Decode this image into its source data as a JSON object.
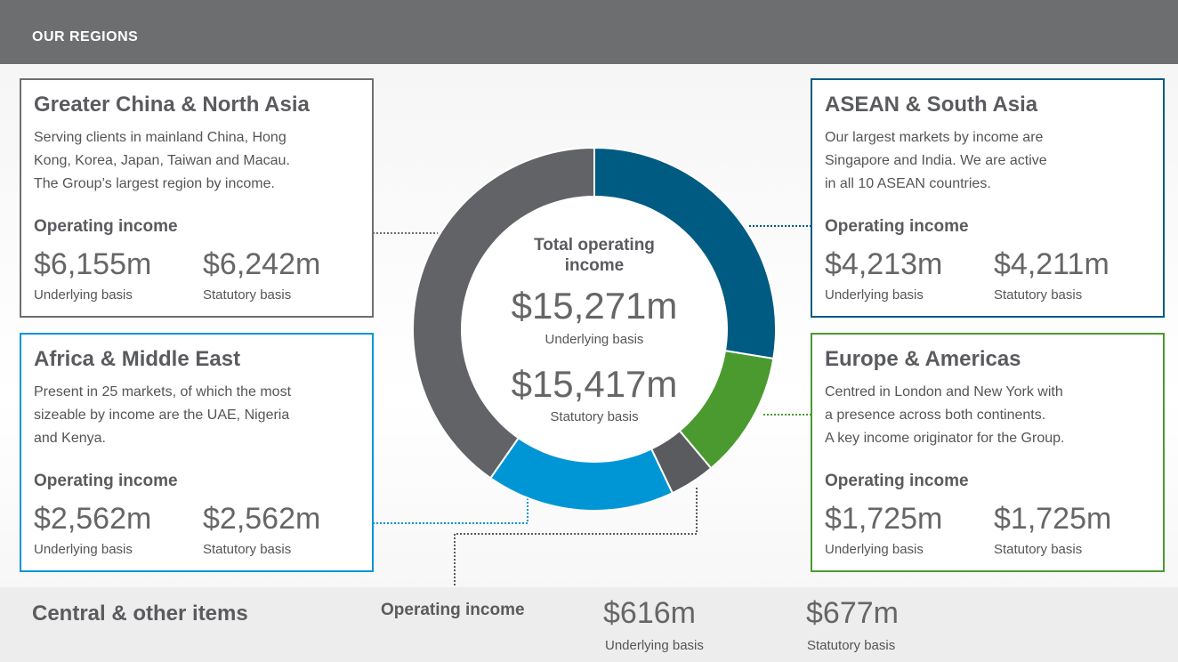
{
  "header": {
    "title": "OUR REGIONS"
  },
  "total": {
    "title": "Total operating income",
    "underlying": "$15,271m",
    "underlying_caption": "Underlying basis",
    "statutory": "$15,417m",
    "statutory_caption": "Statutory basis"
  },
  "regions": [
    {
      "name": "Greater China & North Asia",
      "color": "#6d6e71",
      "donut_color": "#626366",
      "description": [
        "Serving clients in mainland China, Hong",
        "Kong, Korea, Japan, Taiwan and Macau.",
        "The Group’s largest region by income."
      ],
      "income_heading": "Operating income",
      "underlying": {
        "value": 6155,
        "label": "$6,155m"
      },
      "underlying_caption": "Underlying basis",
      "statutory": "$6,242m",
      "statutory_caption": "Statutory basis"
    },
    {
      "name": "ASEAN & South Asia",
      "color": "#005b82",
      "donut_color": "#005b82",
      "description": [
        "Our largest markets by income are",
        "Singapore and India. We are active",
        "in all 10 ASEAN countries."
      ],
      "income_heading": "Operating income",
      "underlying": {
        "value": 4213,
        "label": "$4,213m"
      },
      "underlying_caption": "Underlying basis",
      "statutory": "$4,211m",
      "statutory_caption": "Statutory basis"
    },
    {
      "name": "Africa & Middle East",
      "color": "#0096d6",
      "donut_color": "#0096d6",
      "description": [
        "Present in 25 markets, of which the most",
        "sizeable by income are the UAE, Nigeria",
        "and Kenya."
      ],
      "income_heading": "Operating income",
      "underlying": {
        "value": 2562,
        "label": "$2,562m"
      },
      "underlying_caption": "Underlying basis",
      "statutory": "$2,562m",
      "statutory_caption": "Statutory basis"
    },
    {
      "name": "Europe & Americas",
      "color": "#4a9a2f",
      "donut_color": "#4a9a2f",
      "description": [
        "Centred in London and New York with",
        "a presence across both continents.",
        "A key income originator for the Group."
      ],
      "income_heading": "Operating income",
      "underlying": {
        "value": 1725,
        "label": "$1,725m"
      },
      "underlying_caption": "Underlying basis",
      "statutory": "$1,725m",
      "statutory_caption": "Statutory basis"
    },
    {
      "name": "Central & other items",
      "color": "#5a5b5e",
      "donut_color": "#5a5b5e",
      "income_heading": "Operating income",
      "underlying": {
        "value": 616,
        "label": "$616m"
      },
      "underlying_caption": "Underlying basis",
      "statutory": "$677m",
      "statutory_caption": "Statutory basis"
    }
  ]
}
